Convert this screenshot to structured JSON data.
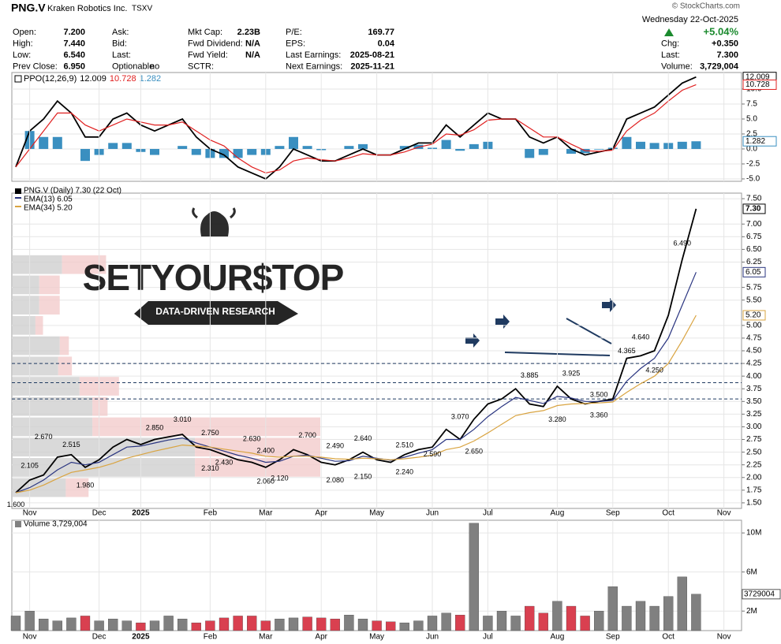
{
  "header": {
    "symbol": "PNG.V",
    "company": "Kraken Robotics Inc.",
    "exchange": "TSXV",
    "credit": "© StockCharts.com",
    "date": "Wednesday  22-Oct-2025",
    "columns": [
      [
        {
          "label": "Open:",
          "value": "7.200"
        },
        {
          "label": "High:",
          "value": "7.440"
        },
        {
          "label": "Low:",
          "value": "6.540"
        },
        {
          "label": "Prev Close:",
          "value": "6.950"
        }
      ],
      [
        {
          "label": "Ask:"
        },
        {
          "label": "Bid:"
        },
        {
          "label": "Last:"
        },
        {
          "label": "Optionable",
          "value": "no"
        }
      ],
      [
        {
          "label": "Mkt Cap:",
          "value": "2.23B"
        },
        {
          "label": "Fwd Dividend:",
          "value": "N/A"
        },
        {
          "label": "Fwd Yield:",
          "value": "N/A"
        },
        {
          "label": "SCTR:"
        }
      ],
      [
        {
          "label": "P/E:",
          "value": "169.77"
        },
        {
          "label": "EPS:",
          "value": "0.04"
        },
        {
          "label": "Last Earnings:",
          "value": "2025-08-21"
        },
        {
          "label": "Next Earnings:",
          "value": "2025-11-21"
        }
      ]
    ],
    "change": "+5.04%",
    "right": [
      {
        "label": "Chg:",
        "value": "+0.350"
      },
      {
        "label": "Last:",
        "value": "7.300"
      },
      {
        "label": "Volume:",
        "value": "3,729,004"
      }
    ]
  },
  "watermark": {
    "title": "SETYOUR$TOP",
    "subtitle": "DATA-DRIVEN RESEARCH"
  },
  "chart_data": [
    {
      "type": "line",
      "legend": {
        "label": "PPO(12,26,9)",
        "values": [
          "12.009",
          "10.728",
          "1.282"
        ]
      },
      "series": [
        {
          "color": "#000000",
          "kind": "line",
          "values": [
            -3,
            3,
            5,
            8,
            6,
            2,
            2,
            5,
            6,
            4,
            3,
            4,
            5,
            2,
            0,
            -1,
            -3,
            -4,
            -5,
            -3,
            0,
            -1,
            -2,
            -2,
            -1,
            0,
            -1,
            -1,
            0,
            1,
            1,
            4,
            2,
            4,
            6,
            5,
            5,
            2,
            1,
            2,
            0,
            -1,
            -0.5,
            0,
            5,
            6,
            7,
            9,
            11,
            12.009
          ]
        },
        {
          "color": "#e02020",
          "kind": "line",
          "values": [
            -3,
            0,
            3,
            6,
            6,
            4,
            3,
            4,
            5,
            4.5,
            4,
            4,
            4.5,
            3,
            1.5,
            0.5,
            -1.5,
            -3,
            -4,
            -3.5,
            -2,
            -1.5,
            -1.8,
            -2,
            -1.5,
            -0.8,
            -1,
            -1,
            -0.5,
            0.3,
            0.8,
            2.5,
            2.3,
            3.2,
            4.8,
            5,
            5,
            3.5,
            2,
            2,
            0.8,
            -0.3,
            -0.4,
            -0.2,
            3,
            4.8,
            6,
            8,
            9.8,
            10.728
          ]
        },
        {
          "color": "#3a8fc0",
          "kind": "bar",
          "values": [
            0,
            3,
            2,
            2,
            0,
            -2,
            -1,
            1,
            1,
            -0.5,
            -1,
            0,
            0.5,
            -1,
            -1.5,
            -1.5,
            -1.5,
            -1,
            -1,
            0.5,
            2,
            0.5,
            -0.2,
            0,
            0.5,
            0.8,
            0,
            0,
            0.5,
            0.7,
            0.2,
            1.5,
            -0.3,
            0.8,
            1.2,
            0,
            0,
            -1.5,
            -1,
            0,
            -0.8,
            -0.7,
            -0.1,
            0.2,
            2,
            1.2,
            1,
            1,
            1.2,
            1.282
          ]
        }
      ],
      "ylim": [
        -5.4,
        12.76
      ],
      "yticks": [
        {
          "value": -5,
          "label": "-5.0"
        },
        -2.5,
        {
          "value": 0,
          "label": "0.0"
        },
        2.5,
        {
          "value": 5,
          "label": "5.0"
        },
        7.5,
        {
          "value": 10,
          "label": "10.0"
        }
      ],
      "grid": true
    },
    {
      "type": "line",
      "categories": [
        null,
        "Nov",
        null,
        null,
        null,
        null,
        "Dec",
        null,
        null,
        "2025",
        null,
        null,
        null,
        null,
        "Feb",
        null,
        null,
        null,
        "Mar",
        null,
        null,
        null,
        "Apr",
        null,
        null,
        null,
        "May",
        null,
        null,
        null,
        "Jun",
        null,
        null,
        null,
        "Jul",
        null,
        null,
        null,
        null,
        "Aug",
        null,
        null,
        null,
        "Sep",
        null,
        null,
        null,
        "Oct",
        null,
        null,
        null,
        "Nov"
      ],
      "series": [
        {
          "name": "PNG.V (Daily) 7.30 (22 Oct)",
          "color": "#000000",
          "values": [
            1.7,
            1.95,
            2.05,
            2.4,
            2.45,
            2.2,
            2.35,
            2.6,
            2.75,
            2.65,
            2.75,
            2.8,
            2.85,
            2.6,
            2.55,
            2.45,
            2.35,
            2.3,
            2.2,
            2.35,
            2.55,
            2.45,
            2.3,
            2.25,
            2.35,
            2.5,
            2.35,
            2.3,
            2.45,
            2.55,
            2.6,
            2.95,
            2.75,
            3.15,
            3.45,
            3.55,
            3.75,
            3.45,
            3.4,
            3.8,
            3.55,
            3.45,
            3.5,
            3.55,
            4.35,
            4.4,
            4.5,
            5.2,
            6.3,
            7.3,
            null,
            null
          ]
        },
        {
          "name": "EMA(13) 6.05",
          "color": "#2a3580",
          "values": [
            1.7,
            1.8,
            1.95,
            2.15,
            2.3,
            2.25,
            2.3,
            2.45,
            2.6,
            2.62,
            2.68,
            2.74,
            2.78,
            2.68,
            2.6,
            2.52,
            2.44,
            2.38,
            2.3,
            2.32,
            2.42,
            2.44,
            2.38,
            2.32,
            2.33,
            2.42,
            2.38,
            2.34,
            2.4,
            2.48,
            2.55,
            2.75,
            2.75,
            2.95,
            3.2,
            3.4,
            3.58,
            3.52,
            3.46,
            3.6,
            3.57,
            3.5,
            3.5,
            3.52,
            3.9,
            4.15,
            4.35,
            4.75,
            5.4,
            6.05,
            null,
            null
          ]
        },
        {
          "name": "EMA(34) 5.20",
          "color": "#d9a441",
          "values": [
            1.7,
            1.75,
            1.85,
            1.98,
            2.1,
            2.15,
            2.2,
            2.28,
            2.38,
            2.45,
            2.52,
            2.58,
            2.64,
            2.62,
            2.6,
            2.56,
            2.52,
            2.48,
            2.42,
            2.4,
            2.42,
            2.42,
            2.4,
            2.37,
            2.36,
            2.38,
            2.37,
            2.35,
            2.37,
            2.4,
            2.44,
            2.55,
            2.6,
            2.72,
            2.88,
            3.05,
            3.22,
            3.28,
            3.32,
            3.42,
            3.45,
            3.46,
            3.47,
            3.49,
            3.68,
            3.85,
            4.0,
            4.25,
            4.7,
            5.2,
            null,
            null
          ]
        }
      ],
      "last_labels": [
        {
          "value": 7.3,
          "label": "7.30"
        },
        {
          "value": 6.05,
          "label": "6.05"
        },
        {
          "value": 5.2,
          "label": "5.20"
        }
      ],
      "ylim": [
        1.39,
        7.61
      ],
      "yticks": [
        {
          "value": 1.5,
          "label": "1.50"
        },
        1.75,
        {
          "value": 2,
          "label": "2.00"
        },
        2.25,
        {
          "value": 2.5,
          "label": "2.50"
        },
        2.75,
        {
          "value": 3,
          "label": "3.00"
        },
        3.25,
        {
          "value": 3.5,
          "label": "3.50"
        },
        3.75,
        {
          "value": 4,
          "label": "4.00"
        },
        4.25,
        {
          "value": 4.5,
          "label": "4.50"
        },
        4.75,
        {
          "value": 5,
          "label": "5.00"
        },
        {
          "value": 5.5,
          "label": "5.50"
        },
        5.75,
        6.25,
        {
          "value": 6.5,
          "label": "6.50"
        },
        6.75,
        {
          "value": 7,
          "label": "7.00"
        },
        {
          "value": 7.5,
          "label": "7.50"
        }
      ],
      "levels": [
        4.25,
        3.87,
        3.55
      ],
      "annotations": [
        {
          "at": 0,
          "value": 1.6,
          "label": "1.600"
        },
        {
          "at": 1,
          "value": 2.105,
          "label": "2.105"
        },
        {
          "at": 2,
          "value": 2.67,
          "label": "2.670"
        },
        {
          "at": 4,
          "value": 2.515,
          "label": "2.515"
        },
        {
          "at": 5,
          "value": 1.98,
          "label": "1.980"
        },
        {
          "at": 10,
          "value": 2.85,
          "label": "2.850"
        },
        {
          "at": 12,
          "value": 3.01,
          "label": "3.010"
        },
        {
          "at": 14,
          "value": 2.75,
          "label": "2.750"
        },
        {
          "at": 17,
          "value": 2.63,
          "label": "2.630"
        },
        {
          "at": 14,
          "value": 2.31,
          "label": "2.310"
        },
        {
          "at": 15,
          "value": 2.43,
          "label": "2.430"
        },
        {
          "at": 18,
          "value": 2.4,
          "label": "2.400"
        },
        {
          "at": 18,
          "value": 2.06,
          "label": "2.060"
        },
        {
          "at": 19,
          "value": 2.12,
          "label": "2.120"
        },
        {
          "at": 21,
          "value": 2.7,
          "label": "2.700"
        },
        {
          "at": 23,
          "value": 2.49,
          "label": "2.490"
        },
        {
          "at": 23,
          "value": 2.08,
          "label": "2.080"
        },
        {
          "at": 25,
          "value": 2.15,
          "label": "2.150"
        },
        {
          "at": 25,
          "value": 2.64,
          "label": "2.640"
        },
        {
          "at": 28,
          "value": 2.51,
          "label": "2.510"
        },
        {
          "at": 28,
          "value": 2.24,
          "label": "2.240"
        },
        {
          "at": 30,
          "value": 2.59,
          "label": "2.590"
        },
        {
          "at": 32,
          "value": 3.07,
          "label": "3.070"
        },
        {
          "at": 33,
          "value": 2.65,
          "label": "2.650"
        },
        {
          "at": 37,
          "value": 3.885,
          "label": "3.885"
        },
        {
          "at": 39,
          "value": 3.28,
          "label": "3.280"
        },
        {
          "at": 40,
          "value": 3.925,
          "label": "3.925"
        },
        {
          "at": 42,
          "value": 3.5,
          "label": "3.500"
        },
        {
          "at": 42,
          "value": 3.36,
          "label": "3.360"
        },
        {
          "at": 44,
          "value": 4.365,
          "label": "4.365"
        },
        {
          "at": 45,
          "value": 4.64,
          "label": "4.640"
        },
        {
          "at": 46,
          "value": 4.25,
          "label": "4.250"
        },
        {
          "at": 48,
          "value": 6.49,
          "label": "6.490"
        }
      ],
      "volume_by_price": {
        "bins": [
          1.6,
          2.0,
          2.4,
          2.8,
          3.2,
          3.6,
          4.0,
          4.4,
          4.8,
          5.2,
          5.6,
          6.0,
          6.4
        ],
        "up": [
          70,
          240,
          240,
          105,
          105,
          88,
          60,
          62,
          30,
          35,
          35,
          65
        ],
        "down": [
          30,
          165,
          165,
          300,
          20,
          52,
          18,
          12,
          10,
          27,
          27,
          58
        ],
        "up_color": "#d0d0d0",
        "down_color": "#f3cccc"
      },
      "grid": true
    },
    {
      "type": "bar",
      "title": "Volume 3,729,004",
      "categories": [
        null,
        "Nov",
        null,
        null,
        null,
        null,
        "Dec",
        null,
        null,
        "2025",
        null,
        null,
        null,
        null,
        "Feb",
        null,
        null,
        null,
        "Mar",
        null,
        null,
        null,
        "Apr",
        null,
        null,
        null,
        "May",
        null,
        null,
        null,
        "Jun",
        null,
        null,
        null,
        "Jul",
        null,
        null,
        null,
        null,
        "Aug",
        null,
        null,
        null,
        "Sep",
        null,
        null,
        null,
        "Oct",
        null,
        null,
        null,
        "Nov"
      ],
      "values": [
        1500000,
        2000000,
        1200000,
        1000000,
        1300000,
        1500000,
        1000000,
        1200000,
        1000000,
        800000,
        1000000,
        1500000,
        1200000,
        800000,
        1000000,
        1300000,
        1500000,
        1500000,
        1000000,
        1200000,
        1300000,
        1400000,
        1300000,
        1200000,
        1600000,
        1200000,
        1000000,
        900000,
        800000,
        1000000,
        1500000,
        1800000,
        1600000,
        11000000,
        1500000,
        2000000,
        1500000,
        2500000,
        1800000,
        3000000,
        2500000,
        1500000,
        2000000,
        4500000,
        2500000,
        3000000,
        2500000,
        3500000,
        5500000,
        3729004,
        null,
        null
      ],
      "up_color": "#808080",
      "down_color": "#d94050",
      "last_label": {
        "value": 3729004,
        "label": "3729004"
      },
      "ylim": [
        0,
        11300000
      ],
      "yticks": [
        {
          "value": 2000000,
          "label": "2M"
        },
        {
          "value": 6000000,
          "label": "6M"
        },
        {
          "value": 10000000,
          "label": "10M"
        }
      ],
      "grid": true
    }
  ]
}
